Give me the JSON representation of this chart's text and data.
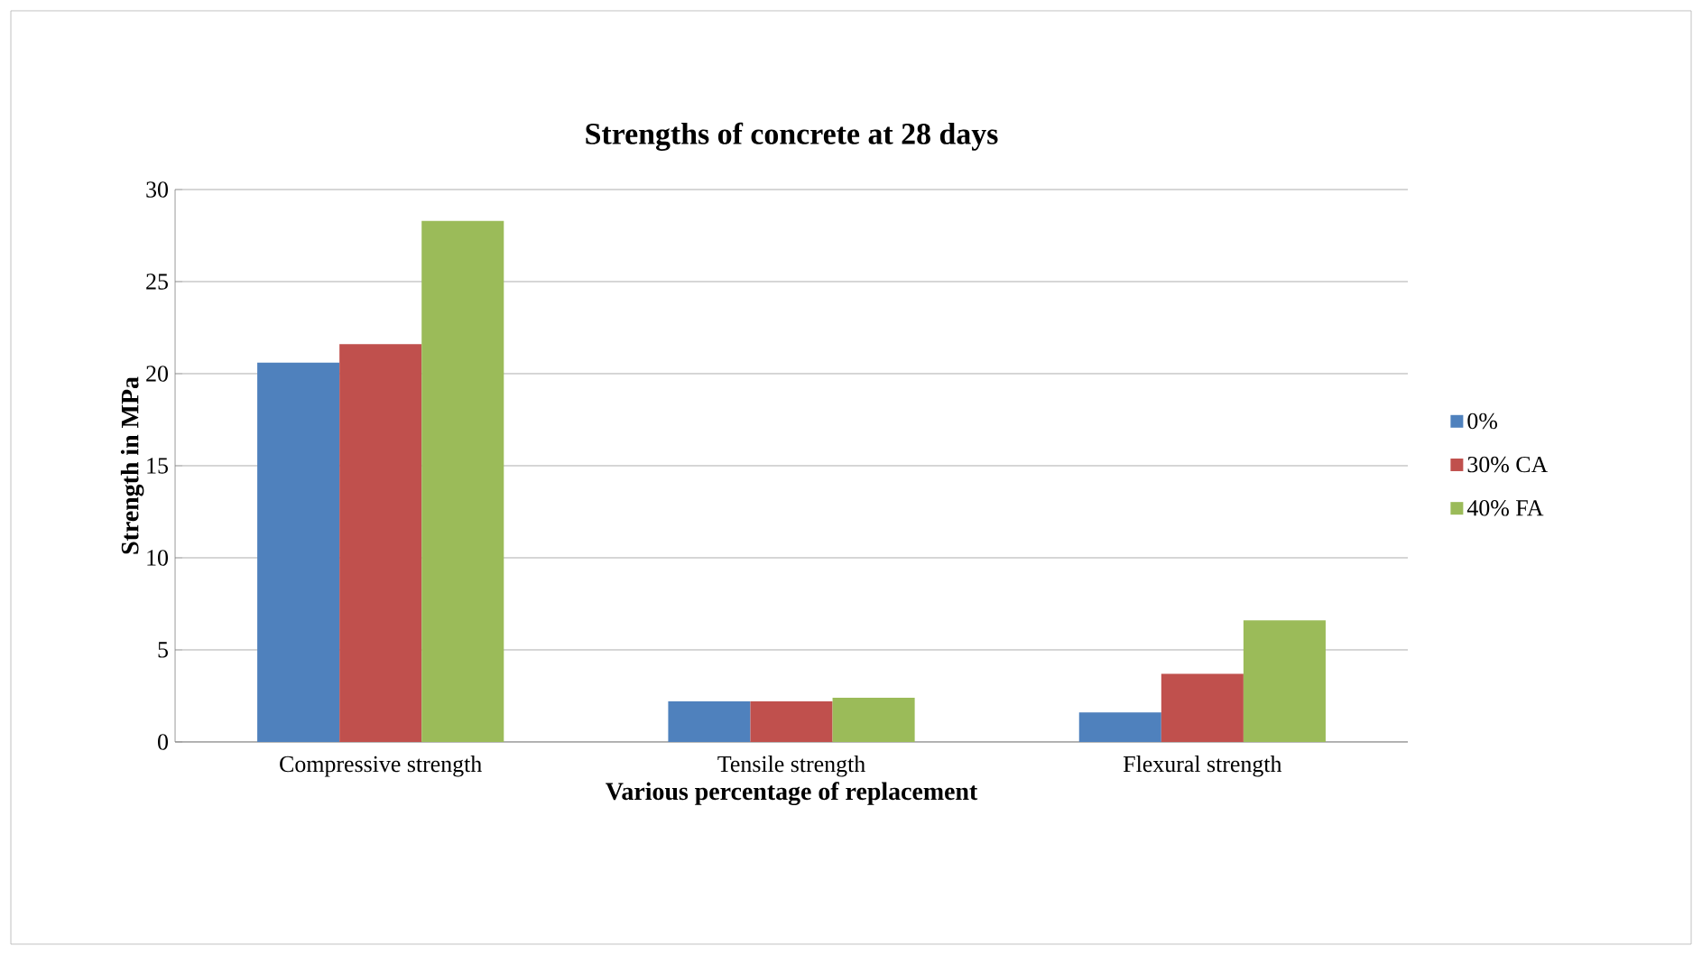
{
  "chart_data": {
    "type": "bar",
    "title": "Strengths of concrete at 28 days",
    "xlabel": "Various percentage of replacement",
    "ylabel": "Strength in MPa",
    "categories": [
      "Compressive strength",
      "Tensile strength",
      "Flexural strength"
    ],
    "series": [
      {
        "name": "0%",
        "color": "#4f81bd",
        "values": [
          20.6,
          2.2,
          1.6
        ]
      },
      {
        "name": "30% CA",
        "color": "#c0504d",
        "values": [
          21.6,
          2.2,
          3.7
        ]
      },
      {
        "name": "40% FA",
        "color": "#9bbb59",
        "values": [
          28.3,
          2.4,
          6.6
        ]
      }
    ],
    "ylim": [
      0,
      30
    ],
    "yticks": [
      0,
      5,
      10,
      15,
      20,
      25,
      30
    ],
    "grid": "y",
    "legend": "right"
  }
}
